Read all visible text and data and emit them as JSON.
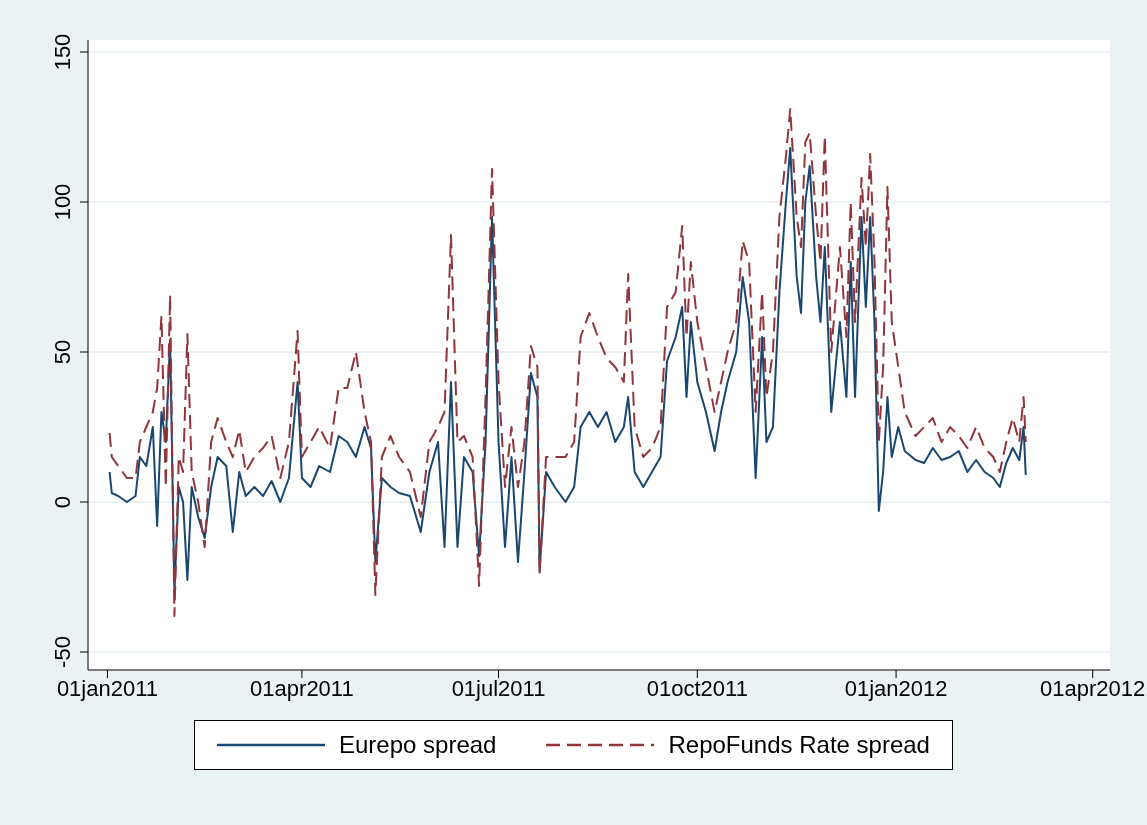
{
  "chart_data": {
    "type": "line",
    "x": [
      "2011-01-02",
      "2011-01-03",
      "2011-01-06",
      "2011-01-10",
      "2011-01-14",
      "2011-01-16",
      "2011-01-19",
      "2011-01-22",
      "2011-01-24",
      "2011-01-26",
      "2011-01-28",
      "2011-01-30",
      "2011-02-01",
      "2011-02-03",
      "2011-02-05",
      "2011-02-07",
      "2011-02-09",
      "2011-02-12",
      "2011-02-15",
      "2011-02-18",
      "2011-02-21",
      "2011-02-25",
      "2011-02-28",
      "2011-03-03",
      "2011-03-06",
      "2011-03-10",
      "2011-03-14",
      "2011-03-18",
      "2011-03-22",
      "2011-03-26",
      "2011-03-30",
      "2011-04-01",
      "2011-04-05",
      "2011-04-09",
      "2011-04-14",
      "2011-04-18",
      "2011-04-22",
      "2011-04-26",
      "2011-04-30",
      "2011-05-03",
      "2011-05-05",
      "2011-05-08",
      "2011-05-12",
      "2011-05-16",
      "2011-05-21",
      "2011-05-26",
      "2011-05-30",
      "2011-06-03",
      "2011-06-06",
      "2011-06-09",
      "2011-06-12",
      "2011-06-15",
      "2011-06-19",
      "2011-06-22",
      "2011-06-25",
      "2011-06-28",
      "2011-07-01",
      "2011-07-04",
      "2011-07-07",
      "2011-07-10",
      "2011-07-13",
      "2011-07-16",
      "2011-07-19",
      "2011-07-20",
      "2011-07-23",
      "2011-07-27",
      "2011-08-01",
      "2011-08-05",
      "2011-08-08",
      "2011-08-12",
      "2011-08-16",
      "2011-08-20",
      "2011-08-24",
      "2011-08-28",
      "2011-08-30",
      "2011-09-02",
      "2011-09-06",
      "2011-09-10",
      "2011-09-14",
      "2011-09-17",
      "2011-09-21",
      "2011-09-24",
      "2011-09-26",
      "2011-09-28",
      "2011-10-01",
      "2011-10-05",
      "2011-10-09",
      "2011-10-12",
      "2011-10-15",
      "2011-10-19",
      "2011-10-22",
      "2011-10-25",
      "2011-10-28",
      "2011-10-31",
      "2011-11-02",
      "2011-11-05",
      "2011-11-08",
      "2011-11-11",
      "2011-11-13",
      "2011-11-16",
      "2011-11-18",
      "2011-11-20",
      "2011-11-22",
      "2011-11-25",
      "2011-11-27",
      "2011-11-29",
      "2011-12-02",
      "2011-12-06",
      "2011-12-09",
      "2011-12-11",
      "2011-12-13",
      "2011-12-16",
      "2011-12-18",
      "2011-12-20",
      "2011-12-22",
      "2011-12-24",
      "2011-12-26",
      "2011-12-28",
      "2011-12-30",
      "2012-01-02",
      "2012-01-05",
      "2012-01-10",
      "2012-01-14",
      "2012-01-18",
      "2012-01-22",
      "2012-01-26",
      "2012-01-30",
      "2012-02-03",
      "2012-02-07",
      "2012-02-11",
      "2012-02-15",
      "2012-02-18",
      "2012-02-21",
      "2012-02-24",
      "2012-02-27",
      "2012-02-29",
      "2012-03-01"
    ],
    "series": [
      {
        "name": "Eurepo spread",
        "color": "#1a476f",
        "line_style": "solid",
        "values": [
          10,
          3,
          2,
          0,
          2,
          15,
          12,
          25,
          -8,
          30,
          20,
          54,
          -30,
          5,
          0,
          -26,
          5,
          -5,
          -12,
          5,
          15,
          12,
          -10,
          10,
          2,
          5,
          2,
          7,
          0,
          8,
          40,
          8,
          5,
          12,
          10,
          22,
          20,
          15,
          25,
          18,
          -20,
          8,
          5,
          3,
          2,
          -10,
          10,
          20,
          -15,
          40,
          -15,
          15,
          10,
          -18,
          20,
          95,
          20,
          -15,
          15,
          -20,
          10,
          43,
          35,
          -23,
          10,
          5,
          0,
          5,
          25,
          30,
          25,
          30,
          20,
          25,
          35,
          10,
          5,
          10,
          15,
          47,
          55,
          65,
          35,
          60,
          40,
          30,
          17,
          30,
          40,
          50,
          75,
          60,
          8,
          55,
          20,
          25,
          70,
          100,
          118,
          75,
          63,
          100,
          112,
          75,
          60,
          85,
          30,
          60,
          35,
          80,
          35,
          95,
          65,
          95,
          60,
          -3,
          10,
          35,
          15,
          25,
          17,
          14,
          13,
          18,
          14,
          15,
          17,
          10,
          14,
          10,
          8,
          5,
          13,
          18,
          14,
          25,
          9
        ]
      },
      {
        "name": "RepoFunds Rate spread",
        "color": "#90353b",
        "line_style": "dashed",
        "values": [
          23,
          15,
          12,
          8,
          8,
          20,
          25,
          30,
          38,
          62,
          5,
          69,
          -38,
          15,
          10,
          56,
          10,
          0,
          -15,
          20,
          28,
          20,
          15,
          24,
          10,
          15,
          18,
          22,
          8,
          20,
          57,
          15,
          20,
          25,
          18,
          38,
          38,
          50,
          30,
          20,
          -31,
          15,
          22,
          15,
          10,
          -5,
          20,
          25,
          30,
          89,
          20,
          22,
          15,
          -28,
          35,
          111,
          40,
          5,
          25,
          5,
          20,
          52,
          45,
          -24,
          15,
          15,
          15,
          20,
          55,
          63,
          55,
          48,
          45,
          40,
          76,
          25,
          15,
          18,
          25,
          65,
          70,
          92,
          55,
          80,
          60,
          45,
          30,
          40,
          50,
          60,
          87,
          80,
          30,
          70,
          35,
          50,
          95,
          115,
          131,
          95,
          85,
          120,
          123,
          95,
          80,
          122,
          50,
          85,
          55,
          100,
          60,
          108,
          85,
          116,
          80,
          20,
          45,
          105,
          60,
          45,
          30,
          22,
          25,
          28,
          20,
          25,
          22,
          18,
          25,
          18,
          15,
          10,
          20,
          28,
          20,
          35,
          20
        ]
      }
    ],
    "xlim": [
      "2010-12-23",
      "2012-04-09"
    ],
    "xticks": [
      {
        "value": "2011-01-01",
        "label": "01jan2011"
      },
      {
        "value": "2011-04-01",
        "label": "01apr2011"
      },
      {
        "value": "2011-07-01",
        "label": "01jul2011"
      },
      {
        "value": "2011-10-01",
        "label": "01oct2011"
      },
      {
        "value": "2012-01-01",
        "label": "01jan2012"
      },
      {
        "value": "2012-04-01",
        "label": "01apr2012"
      }
    ],
    "ylim": [
      -56,
      154
    ],
    "yticks": [
      -50,
      0,
      50,
      100,
      150
    ],
    "grid": "y",
    "legend": "bottom"
  }
}
